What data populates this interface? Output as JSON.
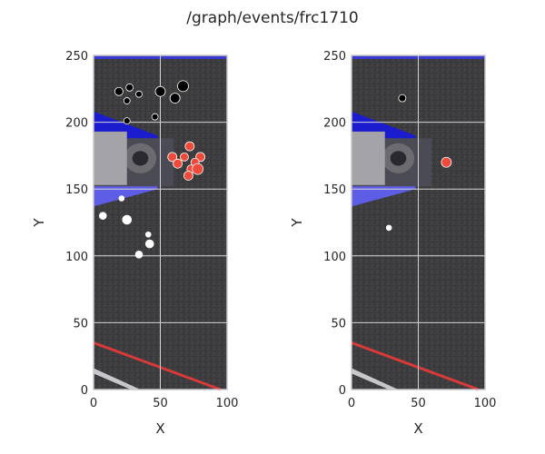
{
  "figure": {
    "title": "/graph/events/frc1710"
  },
  "chart_data": [
    {
      "type": "scatter",
      "title": "",
      "xlabel": "X",
      "ylabel": "Y",
      "xlim": [
        0,
        100
      ],
      "ylim": [
        0,
        250
      ],
      "xticks": [
        "0",
        "50",
        "100"
      ],
      "yticks": [
        "0",
        "50",
        "100",
        "150",
        "200",
        "250"
      ],
      "grid": true,
      "background": "field-image",
      "series": [
        {
          "name": "black",
          "color": "#000000",
          "points": [
            {
              "x": 19,
              "y": 223,
              "s": 4.5
            },
            {
              "x": 27,
              "y": 226,
              "s": 4
            },
            {
              "x": 34,
              "y": 221,
              "s": 3.5
            },
            {
              "x": 25,
              "y": 216,
              "s": 3.5
            },
            {
              "x": 25,
              "y": 201,
              "s": 3.5
            },
            {
              "x": 46,
              "y": 204,
              "s": 3.5
            },
            {
              "x": 50,
              "y": 223,
              "s": 5.5
            },
            {
              "x": 61,
              "y": 218,
              "s": 5.5
            },
            {
              "x": 67,
              "y": 227,
              "s": 6
            }
          ]
        },
        {
          "name": "red",
          "color": "#f04a3a",
          "points": [
            {
              "x": 59,
              "y": 174,
              "s": 5
            },
            {
              "x": 63,
              "y": 169,
              "s": 5
            },
            {
              "x": 68,
              "y": 174,
              "s": 4.5
            },
            {
              "x": 72,
              "y": 182,
              "s": 5
            },
            {
              "x": 80,
              "y": 174,
              "s": 5
            },
            {
              "x": 76,
              "y": 170,
              "s": 4.5
            },
            {
              "x": 73,
              "y": 165,
              "s": 4.5
            },
            {
              "x": 78,
              "y": 165,
              "s": 6
            },
            {
              "x": 71,
              "y": 160,
              "s": 5
            }
          ]
        },
        {
          "name": "white",
          "color": "#ffffff",
          "points": [
            {
              "x": 7,
              "y": 130,
              "s": 4
            },
            {
              "x": 21,
              "y": 143,
              "s": 3
            },
            {
              "x": 25,
              "y": 127,
              "s": 5
            },
            {
              "x": 41,
              "y": 116,
              "s": 3
            },
            {
              "x": 42,
              "y": 109,
              "s": 4.5
            },
            {
              "x": 34,
              "y": 101,
              "s": 4
            }
          ]
        }
      ]
    },
    {
      "type": "scatter",
      "title": "",
      "xlabel": "X",
      "ylabel": "Y",
      "xlim": [
        0,
        100
      ],
      "ylim": [
        0,
        250
      ],
      "xticks": [
        "0",
        "50",
        "100"
      ],
      "yticks": [
        "0",
        "50",
        "100",
        "150",
        "200",
        "250"
      ],
      "grid": true,
      "background": "field-image",
      "series": [
        {
          "name": "black",
          "color": "#000000",
          "points": [
            {
              "x": 38,
              "y": 218,
              "s": 4
            }
          ]
        },
        {
          "name": "red",
          "color": "#f04a3a",
          "points": [
            {
              "x": 71,
              "y": 170,
              "s": 5.5
            }
          ]
        },
        {
          "name": "white",
          "color": "#ffffff",
          "points": [
            {
              "x": 28,
              "y": 121,
              "s": 3
            }
          ]
        }
      ]
    }
  ]
}
